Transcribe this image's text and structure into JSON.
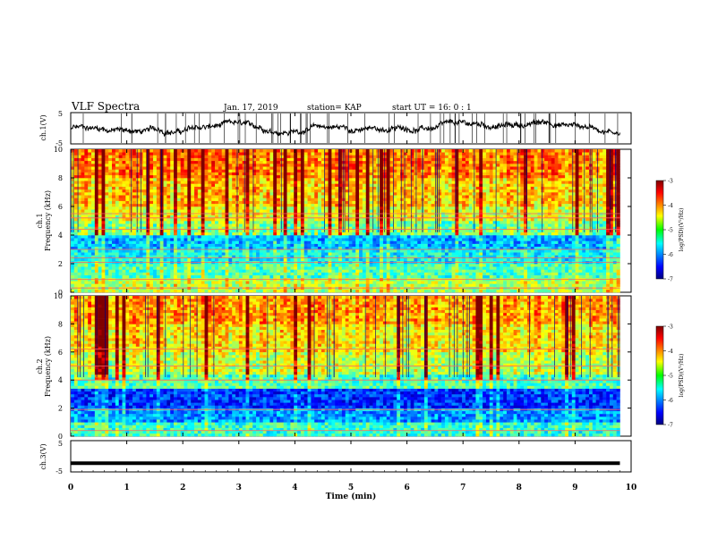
{
  "header": {
    "title": "VLF Spectra",
    "date": "Jan. 17, 2019",
    "station": "station= KAP",
    "start_ut": "start  UT =   16: 0   : 1"
  },
  "chart_data": [
    {
      "type": "line",
      "panel": "ch1-waveform",
      "ylabel": "ch.1(V)",
      "ylim": [
        -5,
        5
      ],
      "yticks": [
        "5",
        "-5"
      ],
      "xlim": [
        0,
        10
      ],
      "trace_level_range": [
        -1.5,
        2
      ]
    },
    {
      "type": "heatmap",
      "panel": "ch1-spectrogram",
      "ylabel_top": "ch.1",
      "ylabel": "Frequency  (kHz)",
      "ylim": [
        0,
        10
      ],
      "yticks": [
        "0",
        "2",
        "4",
        "6",
        "8",
        "10"
      ],
      "xlim": [
        0,
        9.8
      ],
      "colorbar": {
        "label": "log(PSD)(V²/Hz)",
        "range": [
          -7,
          -3
        ],
        "ticks": [
          "-3",
          "-4",
          "-5",
          "-6",
          "-7"
        ],
        "colormap": "jet"
      },
      "bands": [
        {
          "f_low": 0,
          "f_high": 1,
          "level": -4.8
        },
        {
          "f_low": 1,
          "f_high": 2,
          "level": -5.2
        },
        {
          "f_low": 2,
          "f_high": 3,
          "level": -5.5
        },
        {
          "f_low": 3,
          "f_high": 4,
          "level": -5.8
        },
        {
          "f_low": 4,
          "f_high": 5,
          "level": -5.0
        },
        {
          "f_low": 5,
          "f_high": 6,
          "level": -4.6
        },
        {
          "f_low": 6,
          "f_high": 8,
          "level": -4.3
        },
        {
          "f_low": 8,
          "f_high": 10,
          "level": -4.0
        }
      ],
      "tones_khz": [
        0.3,
        0.9,
        2.1,
        2.4,
        3.0,
        4.4,
        5.2,
        5.5
      ]
    },
    {
      "type": "heatmap",
      "panel": "ch2-spectrogram",
      "ylabel_top": "ch.2",
      "ylabel": "Frequency  (kHz)",
      "ylim": [
        0,
        10
      ],
      "yticks": [
        "0",
        "2",
        "4",
        "6",
        "8",
        "10"
      ],
      "xlim": [
        0,
        9.8
      ],
      "colorbar": {
        "label": "log(PSD)(V²/Hz)",
        "range": [
          -7,
          -3
        ],
        "ticks": [
          "-3",
          "-4",
          "-5",
          "-6",
          "-7"
        ],
        "colormap": "jet"
      },
      "bands": [
        {
          "f_low": 0,
          "f_high": 1,
          "level": -5.3
        },
        {
          "f_low": 1,
          "f_high": 2,
          "level": -5.9
        },
        {
          "f_low": 2,
          "f_high": 3.5,
          "level": -6.3
        },
        {
          "f_low": 3.5,
          "f_high": 4.5,
          "level": -5.2
        },
        {
          "f_low": 4.5,
          "f_high": 6,
          "level": -4.7
        },
        {
          "f_low": 6,
          "f_high": 8,
          "level": -4.4
        },
        {
          "f_low": 8,
          "f_high": 10,
          "level": -4.1
        }
      ],
      "tones_khz": [
        0.4,
        1.9,
        4.0,
        5.0,
        6.2
      ]
    },
    {
      "type": "line",
      "panel": "ch3-waveform",
      "ylabel": "ch.3(V)",
      "ylim": [
        -5,
        5
      ],
      "yticks": [
        "5",
        "-5"
      ],
      "xlim": [
        0,
        10
      ],
      "x": [
        0,
        9.8
      ],
      "y": [
        -2.2,
        -2.2
      ]
    }
  ],
  "xaxis": {
    "label": "Time  (min)",
    "ticks": [
      "0",
      "1",
      "2",
      "3",
      "4",
      "5",
      "6",
      "7",
      "8",
      "9",
      "10"
    ]
  }
}
